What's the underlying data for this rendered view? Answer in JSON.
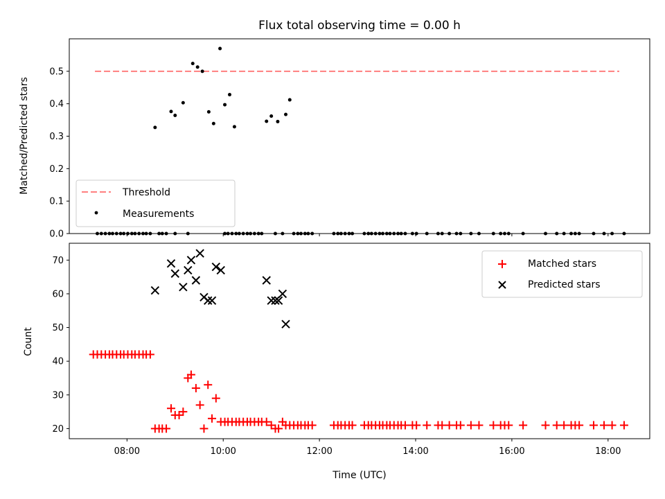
{
  "chart_data": [
    {
      "type": "scatter",
      "title": "Flux total observing time = 0.00 h",
      "xlabel": "",
      "ylabel": "Matched/Predicted stars",
      "xlim": [
        "06:48",
        "18:52"
      ],
      "ylim": [
        0,
        0.6
      ],
      "yticks": [
        "0.0",
        "0.1",
        "0.2",
        "0.3",
        "0.4",
        "0.5"
      ],
      "legend_position": "lower-left",
      "threshold": {
        "name": "Threshold",
        "value": 0.5,
        "x": [
          "07:20",
          "18:14"
        ],
        "color": "#ff7f7f",
        "style": "dashed"
      },
      "series": [
        {
          "name": "Measurements",
          "marker": "dot",
          "color": "#000000",
          "points": [
            [
              "07:23",
              0
            ],
            [
              "07:28",
              0
            ],
            [
              "07:33",
              0
            ],
            [
              "07:38",
              0
            ],
            [
              "07:42",
              0
            ],
            [
              "07:47",
              0
            ],
            [
              "07:52",
              0
            ],
            [
              "07:56",
              0
            ],
            [
              "08:01",
              0
            ],
            [
              "08:06",
              0
            ],
            [
              "08:10",
              0
            ],
            [
              "08:15",
              0
            ],
            [
              "08:20",
              0
            ],
            [
              "08:24",
              0
            ],
            [
              "08:29",
              0
            ],
            [
              "08:35",
              0.327
            ],
            [
              "08:40",
              0
            ],
            [
              "08:44",
              0
            ],
            [
              "08:49",
              0
            ],
            [
              "08:55",
              0.376
            ],
            [
              "09:00",
              0.364
            ],
            [
              "09:10",
              0.403
            ],
            [
              "09:16",
              0
            ],
            [
              "09:22",
              0.524
            ],
            [
              "09:28",
              0.513
            ],
            [
              "09:34",
              0.5
            ],
            [
              "09:42",
              0.375
            ],
            [
              "09:48",
              0.339
            ],
            [
              "09:56",
              0.57
            ],
            [
              "10:02",
              0.397
            ],
            [
              "10:08",
              0.428
            ],
            [
              "10:14",
              0.329
            ],
            [
              "09:00",
              0
            ],
            [
              "10:02",
              0
            ],
            [
              "10:06",
              0
            ],
            [
              "10:11",
              0
            ],
            [
              "10:16",
              0
            ],
            [
              "10:20",
              0
            ],
            [
              "10:25",
              0
            ],
            [
              "10:30",
              0
            ],
            [
              "10:34",
              0
            ],
            [
              "10:39",
              0
            ],
            [
              "10:44",
              0
            ],
            [
              "10:48",
              0
            ],
            [
              "10:54",
              0.346
            ],
            [
              "11:00",
              0.362
            ],
            [
              "11:05",
              0
            ],
            [
              "11:08",
              0.345
            ],
            [
              "11:14",
              0
            ],
            [
              "11:18",
              0.367
            ],
            [
              "11:23",
              0.412
            ],
            [
              "11:28",
              0
            ],
            [
              "11:33",
              0
            ],
            [
              "11:37",
              0
            ],
            [
              "11:42",
              0
            ],
            [
              "11:46",
              0
            ],
            [
              "11:51",
              0
            ],
            [
              "12:18",
              0
            ],
            [
              "12:23",
              0
            ],
            [
              "12:27",
              0
            ],
            [
              "12:32",
              0
            ],
            [
              "12:37",
              0
            ],
            [
              "12:41",
              0
            ],
            [
              "12:56",
              0
            ],
            [
              "13:01",
              0
            ],
            [
              "13:05",
              0
            ],
            [
              "13:10",
              0
            ],
            [
              "13:15",
              0
            ],
            [
              "13:19",
              0
            ],
            [
              "13:24",
              0
            ],
            [
              "13:28",
              0
            ],
            [
              "13:33",
              0
            ],
            [
              "13:38",
              0
            ],
            [
              "13:42",
              0
            ],
            [
              "13:47",
              0
            ],
            [
              "13:56",
              0
            ],
            [
              "14:01",
              0
            ],
            [
              "14:14",
              0
            ],
            [
              "14:28",
              0
            ],
            [
              "14:33",
              0
            ],
            [
              "14:42",
              0
            ],
            [
              "14:51",
              0
            ],
            [
              "14:56",
              0
            ],
            [
              "15:09",
              0
            ],
            [
              "15:19",
              0
            ],
            [
              "15:37",
              0
            ],
            [
              "15:46",
              0
            ],
            [
              "15:51",
              0
            ],
            [
              "15:56",
              0
            ],
            [
              "16:14",
              0
            ],
            [
              "16:42",
              0
            ],
            [
              "16:56",
              0
            ],
            [
              "17:05",
              0
            ],
            [
              "17:14",
              0
            ],
            [
              "17:19",
              0
            ],
            [
              "17:24",
              0
            ],
            [
              "17:42",
              0
            ],
            [
              "17:55",
              0
            ],
            [
              "18:05",
              0
            ],
            [
              "18:20",
              0
            ]
          ]
        }
      ]
    },
    {
      "type": "scatter",
      "title": "",
      "xlabel": "Time (UTC)",
      "ylabel": "Count",
      "xlim": [
        "06:48",
        "18:52"
      ],
      "ylim": [
        17,
        75
      ],
      "yticks": [
        "20",
        "30",
        "40",
        "50",
        "60",
        "70"
      ],
      "xticks": [
        "08:00",
        "10:00",
        "12:00",
        "14:00",
        "16:00",
        "18:00"
      ],
      "legend_position": "upper-right",
      "series": [
        {
          "name": "Matched stars",
          "marker": "plus",
          "color": "#ff0000",
          "points": [
            [
              "07:18",
              42
            ],
            [
              "07:23",
              42
            ],
            [
              "07:28",
              42
            ],
            [
              "07:33",
              42
            ],
            [
              "07:38",
              42
            ],
            [
              "07:42",
              42
            ],
            [
              "07:47",
              42
            ],
            [
              "07:52",
              42
            ],
            [
              "07:56",
              42
            ],
            [
              "08:01",
              42
            ],
            [
              "08:06",
              42
            ],
            [
              "08:10",
              42
            ],
            [
              "08:15",
              42
            ],
            [
              "08:20",
              42
            ],
            [
              "08:24",
              42
            ],
            [
              "08:29",
              42
            ],
            [
              "08:35",
              20
            ],
            [
              "08:40",
              20
            ],
            [
              "08:44",
              20
            ],
            [
              "08:49",
              20
            ],
            [
              "08:55",
              26
            ],
            [
              "09:00",
              24
            ],
            [
              "09:05",
              24
            ],
            [
              "09:10",
              25
            ],
            [
              "09:16",
              35
            ],
            [
              "09:20",
              36
            ],
            [
              "09:26",
              32
            ],
            [
              "09:31",
              27
            ],
            [
              "09:36",
              20
            ],
            [
              "09:41",
              33
            ],
            [
              "09:46",
              23
            ],
            [
              "09:51",
              29
            ],
            [
              "09:57",
              22
            ],
            [
              "10:02",
              22
            ],
            [
              "10:06",
              22
            ],
            [
              "10:11",
              22
            ],
            [
              "10:16",
              22
            ],
            [
              "10:20",
              22
            ],
            [
              "10:25",
              22
            ],
            [
              "10:30",
              22
            ],
            [
              "10:34",
              22
            ],
            [
              "10:39",
              22
            ],
            [
              "10:44",
              22
            ],
            [
              "10:48",
              22
            ],
            [
              "10:54",
              22
            ],
            [
              "11:00",
              21
            ],
            [
              "11:05",
              20
            ],
            [
              "11:09",
              20
            ],
            [
              "11:14",
              22
            ],
            [
              "11:18",
              21
            ],
            [
              "11:23",
              21
            ],
            [
              "11:28",
              21
            ],
            [
              "11:33",
              21
            ],
            [
              "11:37",
              21
            ],
            [
              "11:42",
              21
            ],
            [
              "11:46",
              21
            ],
            [
              "11:51",
              21
            ],
            [
              "12:18",
              21
            ],
            [
              "12:23",
              21
            ],
            [
              "12:27",
              21
            ],
            [
              "12:32",
              21
            ],
            [
              "12:37",
              21
            ],
            [
              "12:41",
              21
            ],
            [
              "12:56",
              21
            ],
            [
              "13:01",
              21
            ],
            [
              "13:05",
              21
            ],
            [
              "13:10",
              21
            ],
            [
              "13:15",
              21
            ],
            [
              "13:19",
              21
            ],
            [
              "13:24",
              21
            ],
            [
              "13:28",
              21
            ],
            [
              "13:33",
              21
            ],
            [
              "13:38",
              21
            ],
            [
              "13:42",
              21
            ],
            [
              "13:47",
              21
            ],
            [
              "13:56",
              21
            ],
            [
              "14:01",
              21
            ],
            [
              "14:14",
              21
            ],
            [
              "14:28",
              21
            ],
            [
              "14:33",
              21
            ],
            [
              "14:42",
              21
            ],
            [
              "14:51",
              21
            ],
            [
              "14:56",
              21
            ],
            [
              "15:09",
              21
            ],
            [
              "15:19",
              21
            ],
            [
              "15:37",
              21
            ],
            [
              "15:46",
              21
            ],
            [
              "15:51",
              21
            ],
            [
              "15:56",
              21
            ],
            [
              "16:14",
              21
            ],
            [
              "16:42",
              21
            ],
            [
              "16:56",
              21
            ],
            [
              "17:05",
              21
            ],
            [
              "17:14",
              21
            ],
            [
              "17:19",
              21
            ],
            [
              "17:24",
              21
            ],
            [
              "17:42",
              21
            ],
            [
              "17:55",
              21
            ],
            [
              "18:05",
              21
            ],
            [
              "18:20",
              21
            ]
          ]
        },
        {
          "name": "Predicted stars",
          "marker": "x",
          "color": "#000000",
          "points": [
            [
              "08:35",
              61
            ],
            [
              "08:55",
              69
            ],
            [
              "09:00",
              66
            ],
            [
              "09:10",
              62
            ],
            [
              "09:16",
              67
            ],
            [
              "09:20",
              70
            ],
            [
              "09:26",
              64
            ],
            [
              "09:31",
              72
            ],
            [
              "09:36",
              59
            ],
            [
              "09:41",
              58
            ],
            [
              "09:46",
              58
            ],
            [
              "09:51",
              68
            ],
            [
              "09:57",
              67
            ],
            [
              "10:54",
              64
            ],
            [
              "11:00",
              58
            ],
            [
              "11:05",
              58
            ],
            [
              "11:09",
              58
            ],
            [
              "11:14",
              60
            ],
            [
              "11:18",
              51
            ]
          ]
        }
      ]
    }
  ]
}
